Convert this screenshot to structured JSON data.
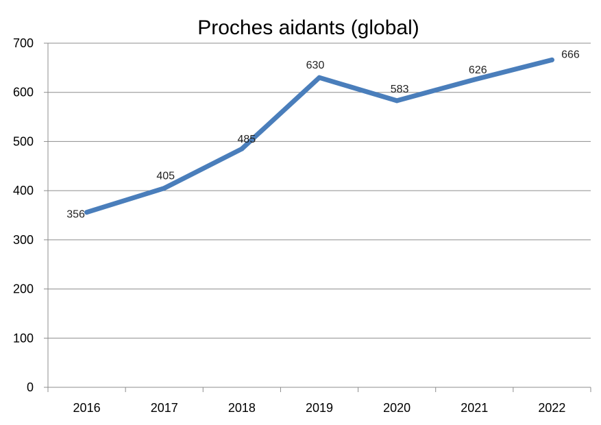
{
  "chart_data": {
    "type": "line",
    "title": "Proches aidants (global)",
    "xlabel": "",
    "ylabel": "",
    "categories": [
      "2016",
      "2017",
      "2018",
      "2019",
      "2020",
      "2021",
      "2022"
    ],
    "series": [
      {
        "values": [
          356,
          405,
          485,
          630,
          583,
          626,
          666
        ],
        "color": "#4A7EBB"
      }
    ],
    "data_labels": [
      "356",
      "405",
      "485",
      "630",
      "583",
      "626",
      "666"
    ],
    "ylim": [
      0,
      700
    ],
    "yticks": [
      0,
      100,
      200,
      300,
      400,
      500,
      600,
      700
    ],
    "ytick_labels": [
      "0",
      "100",
      "200",
      "300",
      "400",
      "500",
      "600",
      "700"
    ],
    "grid": true,
    "legend": "none"
  }
}
